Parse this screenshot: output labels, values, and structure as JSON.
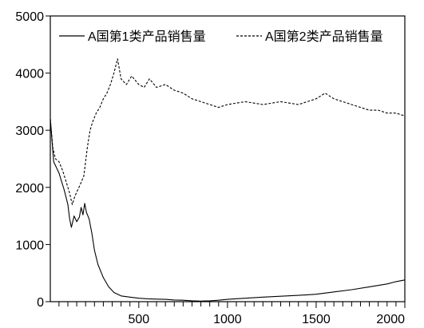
{
  "chart_data": {
    "type": "line",
    "title": "",
    "xlabel": "",
    "ylabel": "",
    "xlim": [
      1,
      2000
    ],
    "ylim": [
      0,
      5000
    ],
    "x_ticks": [
      500,
      1000,
      1500,
      2000
    ],
    "y_ticks": [
      0,
      1000,
      2000,
      3000,
      4000,
      5000
    ],
    "grid": false,
    "legend_position": "top",
    "series": [
      {
        "name": "A国第1类产品销售量",
        "style": "solid",
        "color": "#000000",
        "x": [
          1,
          20,
          50,
          80,
          100,
          110,
          120,
          135,
          150,
          165,
          175,
          185,
          195,
          205,
          220,
          235,
          250,
          270,
          300,
          330,
          360,
          400,
          450,
          500,
          550,
          600,
          650,
          700,
          750,
          800,
          850,
          900,
          950,
          1000,
          1100,
          1200,
          1300,
          1400,
          1500,
          1600,
          1700,
          1800,
          1900,
          1950,
          2000
        ],
        "y": [
          3200,
          2450,
          2250,
          1950,
          1700,
          1450,
          1300,
          1500,
          1400,
          1480,
          1650,
          1520,
          1720,
          1560,
          1450,
          1200,
          900,
          650,
          420,
          260,
          160,
          100,
          80,
          60,
          50,
          45,
          40,
          30,
          25,
          15,
          10,
          15,
          25,
          40,
          60,
          80,
          95,
          110,
          130,
          170,
          210,
          260,
          310,
          350,
          380
        ]
      },
      {
        "name": "A国第2类产品销售量",
        "style": "dashed",
        "color": "#000000",
        "x": [
          1,
          15,
          30,
          50,
          70,
          90,
          110,
          125,
          140,
          155,
          170,
          190,
          210,
          225,
          240,
          260,
          280,
          300,
          320,
          340,
          360,
          380,
          400,
          430,
          460,
          500,
          530,
          560,
          600,
          650,
          700,
          750,
          800,
          850,
          900,
          950,
          1000,
          1100,
          1200,
          1300,
          1400,
          1500,
          1550,
          1600,
          1650,
          1700,
          1750,
          1800,
          1850,
          1900,
          1950,
          2000
        ],
        "y": [
          3200,
          2700,
          2500,
          2450,
          2300,
          2100,
          1900,
          1700,
          1850,
          1950,
          2050,
          2200,
          2700,
          3000,
          3150,
          3300,
          3400,
          3550,
          3650,
          3800,
          4000,
          4250,
          3900,
          3800,
          3950,
          3800,
          3750,
          3900,
          3750,
          3800,
          3700,
          3650,
          3550,
          3500,
          3450,
          3400,
          3450,
          3500,
          3450,
          3500,
          3450,
          3550,
          3650,
          3550,
          3500,
          3450,
          3400,
          3350,
          3350,
          3300,
          3300,
          3250
        ]
      }
    ]
  }
}
